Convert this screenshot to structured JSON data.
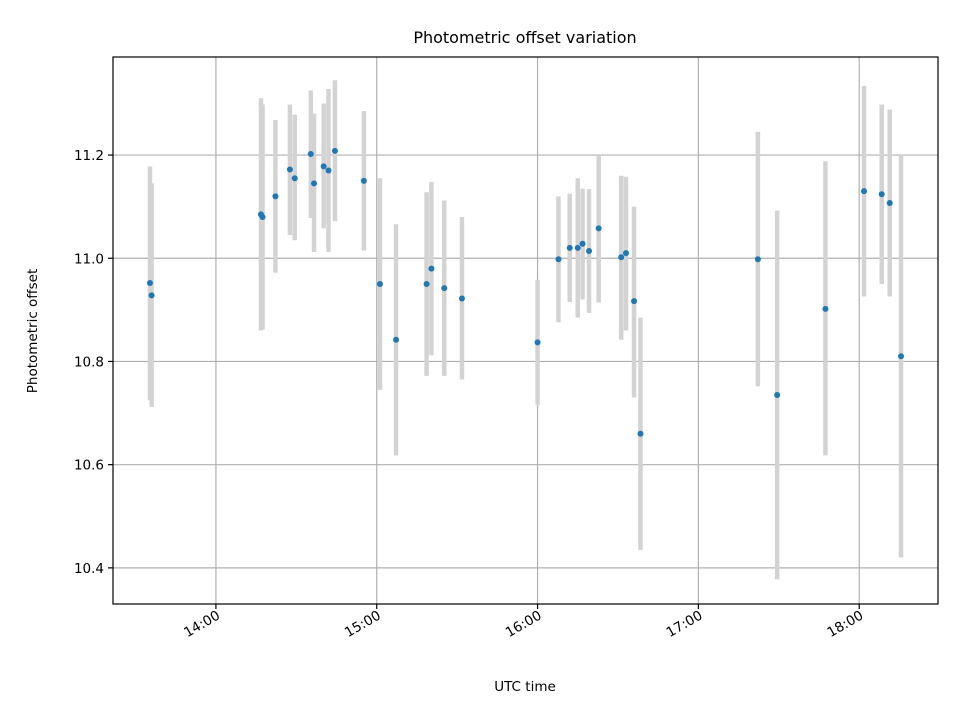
{
  "chart_data": {
    "type": "scatter",
    "title": "Photometric offset variation",
    "xlabel": "UTC time",
    "ylabel": "Photometric offset",
    "x_unit": "hours UTC",
    "xlim": [
      13.36,
      18.49
    ],
    "ylim": [
      10.33,
      11.39
    ],
    "grid": true,
    "x_ticks": [
      {
        "value": 14.0,
        "label": "14:00"
      },
      {
        "value": 15.0,
        "label": "15:00"
      },
      {
        "value": 16.0,
        "label": "16:00"
      },
      {
        "value": 17.0,
        "label": "17:00"
      },
      {
        "value": 18.0,
        "label": "18:00"
      }
    ],
    "y_ticks": [
      {
        "value": 10.4,
        "label": "10.4"
      },
      {
        "value": 10.6,
        "label": "10.6"
      },
      {
        "value": 10.8,
        "label": "10.8"
      },
      {
        "value": 11.0,
        "label": "11.0"
      },
      {
        "value": 11.2,
        "label": "11.2"
      }
    ],
    "marker_color": "#1f77b4",
    "errorbar_color": "#d3d3d3",
    "points": [
      {
        "x": 13.59,
        "y": 10.952,
        "lo": 10.725,
        "hi": 11.178
      },
      {
        "x": 13.6,
        "y": 10.928,
        "lo": 10.712,
        "hi": 11.145
      },
      {
        "x": 14.28,
        "y": 11.085,
        "lo": 10.86,
        "hi": 11.31
      },
      {
        "x": 14.29,
        "y": 11.08,
        "lo": 10.862,
        "hi": 11.298
      },
      {
        "x": 14.37,
        "y": 11.12,
        "lo": 10.972,
        "hi": 11.268
      },
      {
        "x": 14.46,
        "y": 11.172,
        "lo": 11.045,
        "hi": 11.298
      },
      {
        "x": 14.49,
        "y": 11.155,
        "lo": 11.035,
        "hi": 11.278
      },
      {
        "x": 14.59,
        "y": 11.202,
        "lo": 11.078,
        "hi": 11.325
      },
      {
        "x": 14.61,
        "y": 11.145,
        "lo": 11.012,
        "hi": 11.28
      },
      {
        "x": 14.67,
        "y": 11.178,
        "lo": 11.058,
        "hi": 11.3
      },
      {
        "x": 14.7,
        "y": 11.17,
        "lo": 11.012,
        "hi": 11.328
      },
      {
        "x": 14.74,
        "y": 11.208,
        "lo": 11.072,
        "hi": 11.345
      },
      {
        "x": 14.92,
        "y": 11.15,
        "lo": 11.015,
        "hi": 11.285
      },
      {
        "x": 15.02,
        "y": 10.95,
        "lo": 10.745,
        "hi": 11.155
      },
      {
        "x": 15.12,
        "y": 10.842,
        "lo": 10.618,
        "hi": 11.066
      },
      {
        "x": 15.31,
        "y": 10.95,
        "lo": 10.772,
        "hi": 11.128
      },
      {
        "x": 15.34,
        "y": 10.98,
        "lo": 10.812,
        "hi": 11.148
      },
      {
        "x": 15.42,
        "y": 10.942,
        "lo": 10.772,
        "hi": 11.112
      },
      {
        "x": 15.53,
        "y": 10.922,
        "lo": 10.765,
        "hi": 11.08
      },
      {
        "x": 16.0,
        "y": 10.837,
        "lo": 10.716,
        "hi": 10.958
      },
      {
        "x": 16.13,
        "y": 10.998,
        "lo": 10.876,
        "hi": 11.12
      },
      {
        "x": 16.2,
        "y": 11.02,
        "lo": 10.915,
        "hi": 11.125
      },
      {
        "x": 16.25,
        "y": 11.02,
        "lo": 10.885,
        "hi": 11.155
      },
      {
        "x": 16.28,
        "y": 11.028,
        "lo": 10.92,
        "hi": 11.135
      },
      {
        "x": 16.32,
        "y": 11.014,
        "lo": 10.894,
        "hi": 11.134
      },
      {
        "x": 16.38,
        "y": 11.058,
        "lo": 10.914,
        "hi": 11.202
      },
      {
        "x": 16.52,
        "y": 11.002,
        "lo": 10.842,
        "hi": 11.16
      },
      {
        "x": 16.55,
        "y": 11.01,
        "lo": 10.86,
        "hi": 11.158
      },
      {
        "x": 16.6,
        "y": 10.917,
        "lo": 10.73,
        "hi": 11.1
      },
      {
        "x": 16.64,
        "y": 10.66,
        "lo": 10.435,
        "hi": 10.885
      },
      {
        "x": 17.37,
        "y": 10.998,
        "lo": 10.752,
        "hi": 11.245
      },
      {
        "x": 17.49,
        "y": 10.735,
        "lo": 10.378,
        "hi": 11.092
      },
      {
        "x": 17.79,
        "y": 10.902,
        "lo": 10.618,
        "hi": 11.188
      },
      {
        "x": 18.03,
        "y": 11.13,
        "lo": 10.926,
        "hi": 11.334
      },
      {
        "x": 18.14,
        "y": 11.124,
        "lo": 10.95,
        "hi": 11.298
      },
      {
        "x": 18.19,
        "y": 11.107,
        "lo": 10.926,
        "hi": 11.288
      },
      {
        "x": 18.26,
        "y": 10.81,
        "lo": 10.42,
        "hi": 11.2
      }
    ]
  }
}
